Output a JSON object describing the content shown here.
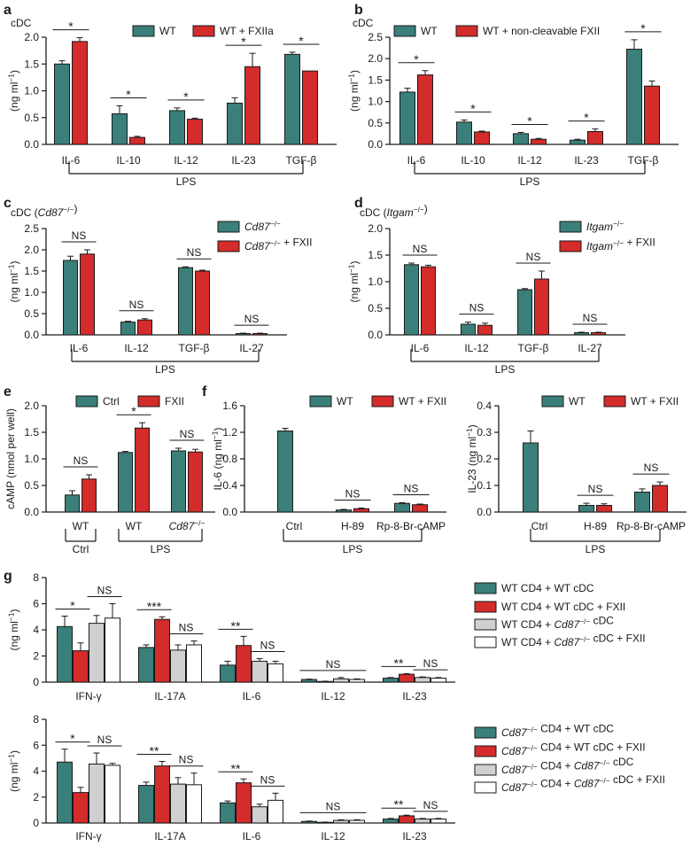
{
  "colors": {
    "teal": "#3b7f7a",
    "red": "#d42b2b",
    "grey": "#d0d0d0",
    "white": "#ffffff",
    "ink": "#1a1a1a"
  },
  "chart_data": [
    {
      "panel": "a",
      "type": "bar",
      "title": "cDC",
      "ylabel": "(ng ml⁻¹)",
      "ylim": [
        0,
        2.0
      ],
      "yticks": [
        0,
        0.5,
        1.0,
        1.5,
        2.0
      ],
      "yticks_text": [
        "0.0",
        "0.5",
        "1.0",
        "1.5",
        "2.0"
      ],
      "categories": [
        "IL-6",
        "IL-10",
        "IL-12",
        "IL-23",
        "TGF-β"
      ],
      "series": [
        {
          "name": "WT",
          "color": "teal",
          "values": [
            1.5,
            0.57,
            0.63,
            0.77,
            1.68
          ],
          "errors": [
            0.06,
            0.15,
            0.05,
            0.1,
            0.04
          ]
        },
        {
          "name": "WT + FXIIa",
          "color": "red",
          "values": [
            1.92,
            0.13,
            0.47,
            1.45,
            1.37
          ],
          "errors": [
            0.07,
            0.02,
            0.02,
            0.25,
            0.0
          ]
        }
      ],
      "sig": [
        {
          "cat": 0,
          "label": "*"
        },
        {
          "cat": 1,
          "label": "*"
        },
        {
          "cat": 2,
          "label": "*"
        },
        {
          "cat": 3,
          "label": "*"
        },
        {
          "cat": 4,
          "label": "*"
        }
      ],
      "groups": [
        {
          "label": "LPS",
          "from": 0,
          "to": 4
        }
      ]
    },
    {
      "panel": "b",
      "type": "bar",
      "title": "cDC",
      "ylabel": "(ng ml⁻¹)",
      "ylim": [
        0,
        2.5
      ],
      "yticks": [
        0,
        0.5,
        1.0,
        1.5,
        2.0,
        2.5
      ],
      "yticks_text": [
        "0.0",
        "0.5",
        "1.0",
        "1.5",
        "2.0",
        "2.5"
      ],
      "categories": [
        "IL-6",
        "IL-10",
        "IL-12",
        "IL-23",
        "TGF-β"
      ],
      "series": [
        {
          "name": "WT",
          "color": "teal",
          "values": [
            1.22,
            0.52,
            0.25,
            0.1,
            2.22
          ],
          "errors": [
            0.09,
            0.05,
            0.03,
            0.02,
            0.22
          ]
        },
        {
          "name": "WT + non-cleavable FXII",
          "color": "red",
          "values": [
            1.62,
            0.29,
            0.12,
            0.3,
            1.36
          ],
          "errors": [
            0.1,
            0.02,
            0.02,
            0.06,
            0.12
          ]
        }
      ],
      "sig": [
        {
          "cat": 0,
          "label": "*"
        },
        {
          "cat": 1,
          "label": "*"
        },
        {
          "cat": 2,
          "label": "*"
        },
        {
          "cat": 3,
          "label": "*"
        },
        {
          "cat": 4,
          "label": "*"
        }
      ],
      "groups": [
        {
          "label": "LPS",
          "from": 0,
          "to": 4
        }
      ]
    },
    {
      "panel": "c",
      "type": "bar",
      "title": "cDC (Cd87⁻/⁻)",
      "ylabel": "(ng ml⁻¹)",
      "ylim": [
        0,
        2.5
      ],
      "yticks": [
        0,
        0.5,
        1.0,
        1.5,
        2.0,
        2.5
      ],
      "yticks_text": [
        "0.0",
        "0.5",
        "1.0",
        "1.5",
        "2.0",
        "2.5"
      ],
      "categories": [
        "IL-6",
        "IL-12",
        "TGF-β",
        "IL-27"
      ],
      "series": [
        {
          "name": "Cd87⁻/⁻",
          "color": "teal",
          "values": [
            1.75,
            0.3,
            1.58,
            0.03
          ],
          "errors": [
            0.1,
            0.02,
            0.02,
            0.01
          ]
        },
        {
          "name": "Cd87⁻/⁻ + FXII",
          "color": "red",
          "values": [
            1.9,
            0.35,
            1.5,
            0.03
          ],
          "errors": [
            0.1,
            0.03,
            0.02,
            0.01
          ]
        }
      ],
      "sig": [
        {
          "cat": 0,
          "label": "NS"
        },
        {
          "cat": 1,
          "label": "NS"
        },
        {
          "cat": 2,
          "label": "NS"
        },
        {
          "cat": 3,
          "label": "NS"
        }
      ],
      "groups": [
        {
          "label": "LPS",
          "from": 0,
          "to": 3
        }
      ]
    },
    {
      "panel": "d",
      "type": "bar",
      "title": "cDC (Itgam⁻/⁻)",
      "ylabel": "(ng ml⁻¹)",
      "ylim": [
        0,
        2.0
      ],
      "yticks": [
        0,
        0.5,
        1.0,
        1.5,
        2.0
      ],
      "yticks_text": [
        "0.0",
        "0.5",
        "1.0",
        "1.5",
        "2.0"
      ],
      "categories": [
        "IL-6",
        "IL-12",
        "TGF-β",
        "IL-27"
      ],
      "series": [
        {
          "name": "Itgam⁻/⁻",
          "color": "teal",
          "values": [
            1.32,
            0.2,
            0.85,
            0.04
          ],
          "errors": [
            0.03,
            0.04,
            0.02,
            0.01
          ]
        },
        {
          "name": "Itgam⁻/⁻ + FXII",
          "color": "red",
          "values": [
            1.28,
            0.18,
            1.05,
            0.04
          ],
          "errors": [
            0.03,
            0.04,
            0.15,
            0.01
          ]
        }
      ],
      "sig": [
        {
          "cat": 0,
          "label": "NS"
        },
        {
          "cat": 1,
          "label": "NS"
        },
        {
          "cat": 2,
          "label": "NS"
        },
        {
          "cat": 3,
          "label": "NS"
        }
      ],
      "groups": [
        {
          "label": "LPS",
          "from": 0,
          "to": 3
        }
      ]
    },
    {
      "panel": "e",
      "type": "bar",
      "title": "",
      "ylabel": "cAMP (nmol per well)",
      "ylim": [
        0,
        2.0
      ],
      "yticks": [
        0,
        0.5,
        1.0,
        1.5,
        2.0
      ],
      "yticks_text": [
        "0.0",
        "0.5",
        "1.0",
        "1.5",
        "2.0"
      ],
      "categories": [
        "WT",
        "WT",
        "Cd87⁻/⁻"
      ],
      "series": [
        {
          "name": "Ctrl",
          "color": "teal",
          "values": [
            0.32,
            1.12,
            1.15
          ],
          "errors": [
            0.08,
            0.02,
            0.05
          ]
        },
        {
          "name": "FXII",
          "color": "red",
          "values": [
            0.62,
            1.58,
            1.13
          ],
          "errors": [
            0.08,
            0.1,
            0.05
          ]
        }
      ],
      "sig": [
        {
          "cat": 0,
          "label": "NS"
        },
        {
          "cat": 1,
          "label": "*"
        },
        {
          "cat": 2,
          "label": "NS"
        }
      ],
      "groups": [
        {
          "label": "Ctrl",
          "from": 0,
          "to": 0
        },
        {
          "label": "LPS",
          "from": 1,
          "to": 2
        }
      ]
    },
    {
      "panel": "f",
      "type": "bar",
      "title": "",
      "ylabel": "IL-6 (ng ml⁻¹)",
      "ylim": [
        0,
        1.6
      ],
      "yticks": [
        0,
        0.4,
        0.8,
        1.2,
        1.6
      ],
      "yticks_text": [
        "0.0",
        "0.4",
        "0.8",
        "1.2",
        "1.6"
      ],
      "categories": [
        "Ctrl",
        "H-89",
        "Rp-8-Br-cAMP"
      ],
      "series": [
        {
          "name": "WT",
          "color": "teal",
          "values": [
            1.22,
            0.03,
            0.13
          ],
          "errors": [
            0.04,
            0.01,
            0.01
          ]
        },
        {
          "name": "WT + FXII",
          "color": "red",
          "values": [
            null,
            0.05,
            0.11
          ],
          "errors": [
            0,
            0.01,
            0.01
          ]
        }
      ],
      "sig": [
        {
          "cat": 1,
          "label": "NS"
        },
        {
          "cat": 2,
          "label": "NS"
        }
      ],
      "groups": [
        {
          "label": "LPS",
          "from": 0,
          "to": 2
        }
      ]
    },
    {
      "panel": "f2",
      "type": "bar",
      "title": "",
      "ylabel": "IL-23 (ng ml⁻¹)",
      "ylim": [
        0,
        0.4
      ],
      "yticks": [
        0,
        0.1,
        0.2,
        0.3,
        0.4
      ],
      "yticks_text": [
        "0.0",
        "0.1",
        "0.2",
        "0.3",
        "0.4"
      ],
      "categories": [
        "Ctrl",
        "H-89",
        "Rp-8-Br-cAMP"
      ],
      "series": [
        {
          "name": "WT",
          "color": "teal",
          "values": [
            0.26,
            0.025,
            0.075
          ],
          "errors": [
            0.045,
            0.008,
            0.012
          ]
        },
        {
          "name": "WT + FXII",
          "color": "red",
          "values": [
            null,
            0.025,
            0.1
          ],
          "errors": [
            0,
            0.006,
            0.013
          ]
        }
      ],
      "sig": [
        {
          "cat": 1,
          "label": "NS"
        },
        {
          "cat": 2,
          "label": "NS"
        }
      ],
      "groups": [
        {
          "label": "LPS",
          "from": 0,
          "to": 2
        }
      ]
    },
    {
      "panel": "g",
      "type": "bar",
      "title": "",
      "ylabel": "(ng ml⁻¹)",
      "ylim": [
        0,
        8
      ],
      "yticks": [
        0,
        2,
        4,
        6,
        8
      ],
      "yticks_text": [
        "0",
        "2",
        "4",
        "6",
        "8"
      ],
      "categories": [
        "IFN-γ",
        "IL-17A",
        "IL-6",
        "IL-12",
        "IL-23"
      ],
      "series": [
        {
          "name": "WT CD4 + WT cDC",
          "color": "teal",
          "values": [
            4.25,
            2.65,
            1.3,
            0.2,
            0.3
          ],
          "errors": [
            0.8,
            0.2,
            0.3,
            0.03,
            0.05
          ]
        },
        {
          "name": "WT CD4 + WT cDC + FXII",
          "color": "red",
          "values": [
            2.4,
            4.8,
            2.8,
            0.05,
            0.6
          ],
          "errors": [
            0.6,
            0.2,
            0.7,
            0.02,
            0.05
          ]
        },
        {
          "name": "WT CD4 + Cd87⁻/⁻ cDC",
          "color": "grey",
          "values": [
            4.5,
            2.45,
            1.6,
            0.25,
            0.35
          ],
          "errors": [
            0.6,
            0.4,
            0.2,
            0.1,
            0.05
          ]
        },
        {
          "name": "WT CD4 + Cd87⁻/⁻ cDC + FXII",
          "color": "white",
          "values": [
            4.9,
            2.85,
            1.4,
            0.2,
            0.3
          ],
          "errors": [
            1.1,
            0.3,
            0.2,
            0.05,
            0.05
          ]
        }
      ],
      "sig": [
        {
          "cat": 0,
          "s1": 0,
          "s2": 1,
          "label": "*"
        },
        {
          "cat": 0,
          "s1": 2,
          "s2": 3,
          "label": "NS"
        },
        {
          "cat": 1,
          "s1": 0,
          "s2": 1,
          "label": "***"
        },
        {
          "cat": 1,
          "s1": 2,
          "s2": 3,
          "label": "NS"
        },
        {
          "cat": 2,
          "s1": 0,
          "s2": 1,
          "label": "**"
        },
        {
          "cat": 2,
          "s1": 2,
          "s2": 3,
          "label": "NS"
        },
        {
          "cat": 3,
          "s1": 0,
          "s2": 3,
          "label": "NS"
        },
        {
          "cat": 4,
          "s1": 0,
          "s2": 1,
          "label": "**"
        },
        {
          "cat": 4,
          "s1": 2,
          "s2": 3,
          "label": "NS"
        }
      ]
    },
    {
      "panel": "g2",
      "type": "bar",
      "title": "",
      "ylabel": "(ng ml⁻¹)",
      "ylim": [
        0,
        8
      ],
      "yticks": [
        0,
        2,
        4,
        6,
        8
      ],
      "yticks_text": [
        "0",
        "2",
        "4",
        "6",
        "8"
      ],
      "categories": [
        "IFN-γ",
        "IL-17A",
        "IL-6",
        "IL-12",
        "IL-23"
      ],
      "series": [
        {
          "name": "Cd87⁻/⁻ CD4 + WT cDC",
          "color": "teal",
          "values": [
            4.7,
            2.9,
            1.55,
            0.12,
            0.3
          ],
          "errors": [
            1.0,
            0.25,
            0.15,
            0.03,
            0.05
          ]
        },
        {
          "name": "Cd87⁻/⁻ CD4 + WT cDC + FXII",
          "color": "red",
          "values": [
            2.35,
            4.4,
            3.1,
            0.05,
            0.55
          ],
          "errors": [
            0.4,
            0.35,
            0.3,
            0.02,
            0.05
          ]
        },
        {
          "name": "Cd87⁻/⁻ CD4 + Cd87⁻/⁻ cDC",
          "color": "grey",
          "values": [
            4.55,
            3.0,
            1.25,
            0.2,
            0.3
          ],
          "errors": [
            0.85,
            0.5,
            0.2,
            0.05,
            0.05
          ]
        },
        {
          "name": "Cd87⁻/⁻ CD4 + Cd87⁻/⁻ cDC + FXII",
          "color": "white",
          "values": [
            4.45,
            2.95,
            1.75,
            0.2,
            0.3
          ],
          "errors": [
            0.15,
            0.9,
            0.55,
            0.05,
            0.05
          ]
        }
      ],
      "sig": [
        {
          "cat": 0,
          "s1": 0,
          "s2": 1,
          "label": "*"
        },
        {
          "cat": 0,
          "s1": 2,
          "s2": 3,
          "label": "NS"
        },
        {
          "cat": 1,
          "s1": 0,
          "s2": 1,
          "label": "**"
        },
        {
          "cat": 1,
          "s1": 2,
          "s2": 3,
          "label": "NS"
        },
        {
          "cat": 2,
          "s1": 0,
          "s2": 1,
          "label": "**"
        },
        {
          "cat": 2,
          "s1": 2,
          "s2": 3,
          "label": "NS"
        },
        {
          "cat": 3,
          "s1": 0,
          "s2": 3,
          "label": "NS"
        },
        {
          "cat": 4,
          "s1": 0,
          "s2": 1,
          "label": "**"
        },
        {
          "cat": 4,
          "s1": 2,
          "s2": 3,
          "label": "NS"
        }
      ]
    }
  ],
  "panel_letters": [
    "a",
    "b",
    "c",
    "d",
    "e",
    "f",
    "g"
  ]
}
